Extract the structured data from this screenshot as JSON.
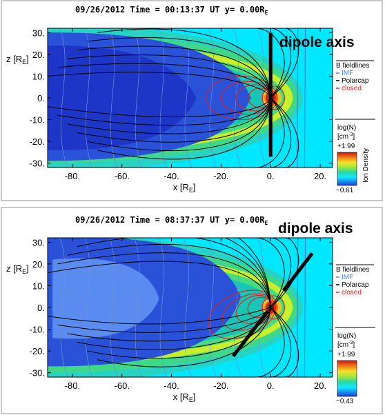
{
  "chart_data": [
    {
      "type": "heatmap",
      "title": "09/26/2012 Time = 00:13:37 UT y= 0.00R_E",
      "date": "09/26/2012",
      "time": "00:13:37 UT",
      "slice": "y= 0.00R_E",
      "xlabel": "x [R_E]",
      "ylabel": "z [R_E]",
      "xlim": [
        -90,
        25
      ],
      "ylim": [
        -32,
        32
      ],
      "xticks": [
        "-80.",
        "-60.",
        "-40.",
        "-20.",
        "0.",
        "20."
      ],
      "xtick_values": [
        -80,
        -60,
        -40,
        -20,
        0,
        20
      ],
      "yticks": [
        "30.",
        "20.",
        "10.",
        "0.",
        "-10.",
        "-20.",
        "-30."
      ],
      "ytick_values": [
        30,
        20,
        10,
        0,
        -10,
        -20,
        -30
      ],
      "annotation": "dipole axis",
      "dipole_axis_tilt_deg": 0,
      "legend": {
        "title": "B fieldlines",
        "entries": [
          {
            "name": "IMF",
            "color": "#4a7fd6"
          },
          {
            "name": "Polarcap",
            "color": "#000000"
          },
          {
            "name": "closed",
            "color": "#e0201c"
          }
        ]
      },
      "colorbar": {
        "quantity": "log(N)",
        "unit": "[cm^-3]",
        "max": 1.99,
        "min": -0.61,
        "max_label": "+1.99",
        "min_label": "−0.61",
        "side_label": "Ion Density"
      }
    },
    {
      "type": "heatmap",
      "title": "09/26/2012 Time = 08:37:37 UT y= 0.00R_E",
      "date": "09/26/2012",
      "time": "08:37:37 UT",
      "slice": "y= 0.00R_E",
      "xlabel": "x [R_E]",
      "ylabel": "z [R_E]",
      "xlim": [
        -90,
        25
      ],
      "ylim": [
        -32,
        32
      ],
      "xticks": [
        "-80.",
        "-60.",
        "-40.",
        "-20.",
        "0.",
        "20."
      ],
      "xtick_values": [
        -80,
        -60,
        -40,
        -20,
        0,
        20
      ],
      "yticks": [
        "30.",
        "20.",
        "10.",
        "0.",
        "-10.",
        "-20.",
        "-30."
      ],
      "ytick_values": [
        30,
        20,
        10,
        0,
        -10,
        -20,
        -30
      ],
      "annotation": "dipole axis",
      "dipole_axis_tilt_deg": 34,
      "legend": {
        "title": "B fieldlines",
        "entries": [
          {
            "name": "IMF",
            "color": "#4a7fd6"
          },
          {
            "name": "Polarcap",
            "color": "#000000"
          },
          {
            "name": "closed",
            "color": "#e0201c"
          }
        ]
      },
      "colorbar": {
        "quantity": "log(N)",
        "unit": "[cm^-3]",
        "max": 1.99,
        "min": -0.43,
        "max_label": "+1.99",
        "min_label": "−0.43"
      }
    }
  ],
  "colors": {
    "frame": "#c8c8c8",
    "background": "#00e8ff",
    "tail": "#2a52d9",
    "tail_deep": "#1e36c8",
    "sheath": "#18c6b6",
    "bowshock": "#3fd889",
    "magnetosheath_hot": "#c8ee2c",
    "core": "#e81515",
    "earth": "#000000"
  }
}
